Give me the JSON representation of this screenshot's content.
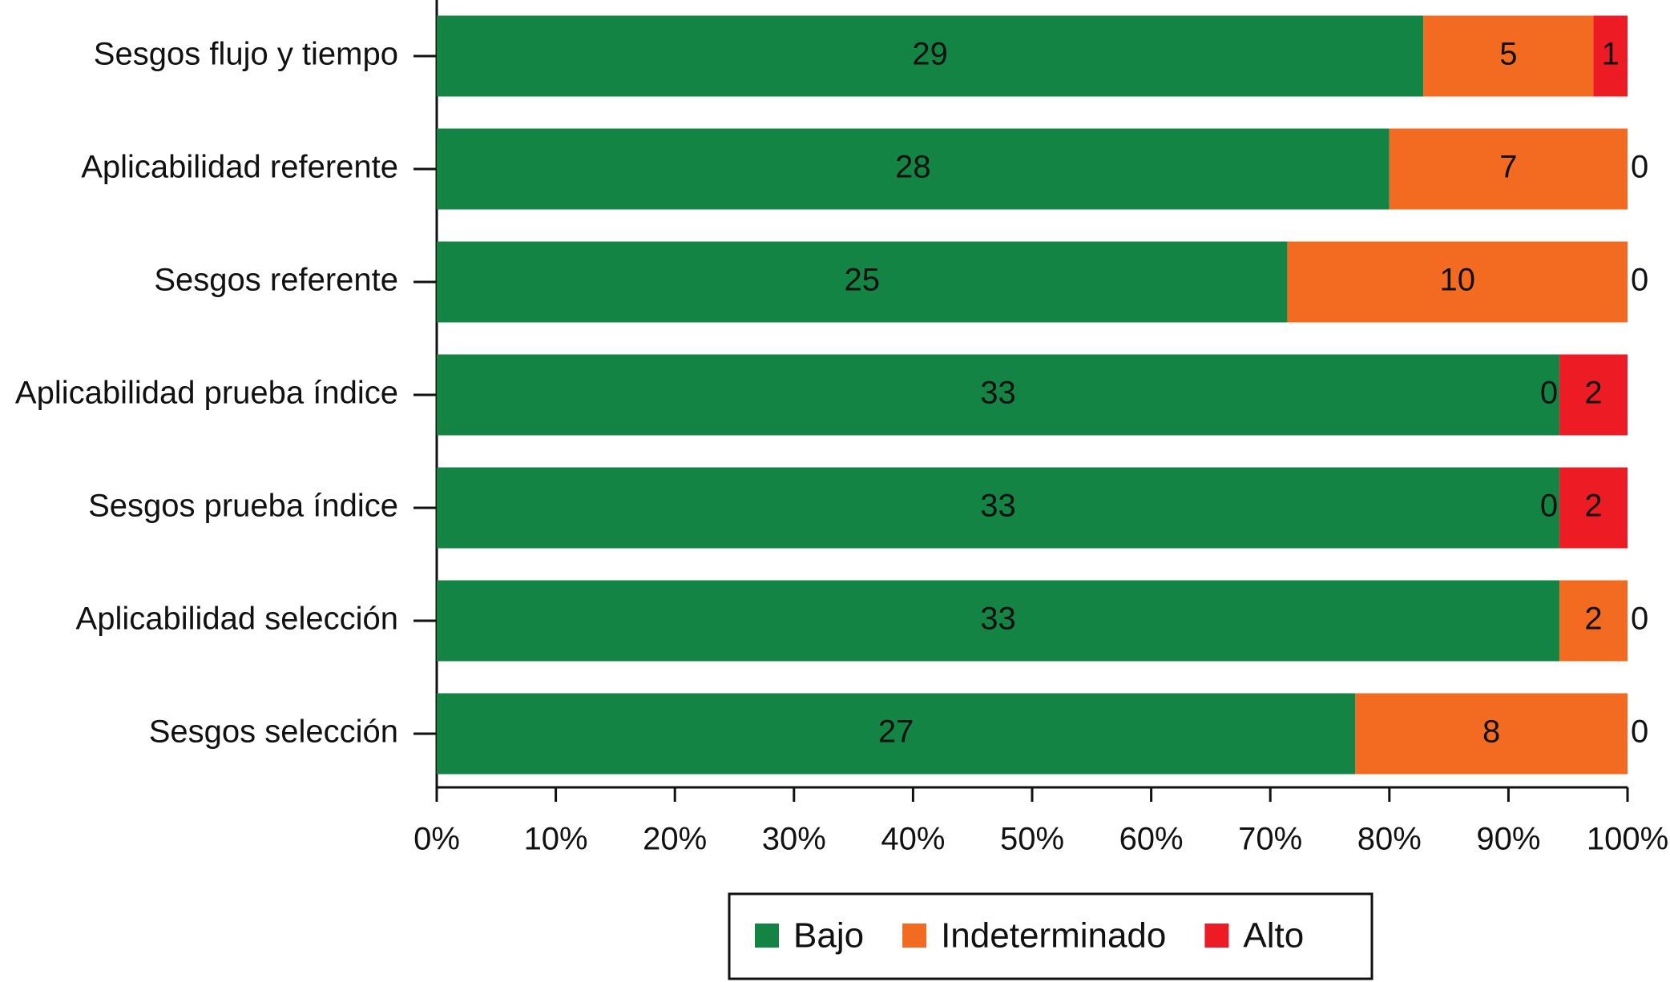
{
  "chart_data": {
    "type": "bar",
    "orientation": "horizontal",
    "stacked": "percent",
    "categories": [
      "Sesgos flujo y tiempo",
      "Aplicabilidad referente",
      "Sesgos referente",
      "Aplicabilidad prueba índice",
      "Sesgos prueba índice",
      "Aplicabilidad selección",
      "Sesgos selección"
    ],
    "series": [
      {
        "name": "Bajo",
        "color": "#138443",
        "values": [
          29,
          28,
          25,
          33,
          33,
          33,
          27
        ]
      },
      {
        "name": "Indeterminado",
        "color": "#f26b21",
        "values": [
          5,
          7,
          10,
          0,
          0,
          2,
          8
        ]
      },
      {
        "name": "Alto",
        "color": "#ed1c24",
        "values": [
          1,
          0,
          0,
          2,
          2,
          0,
          0
        ]
      }
    ],
    "xlim": [
      0,
      100
    ],
    "xticks": [
      {
        "value": 0,
        "label": "0%"
      },
      {
        "value": 10,
        "label": "10%"
      },
      {
        "value": 20,
        "label": "20%"
      },
      {
        "value": 30,
        "label": "30%"
      },
      {
        "value": 40,
        "label": "40%"
      },
      {
        "value": 50,
        "label": "50%"
      },
      {
        "value": 60,
        "label": "60%"
      },
      {
        "value": 70,
        "label": "70%"
      },
      {
        "value": 80,
        "label": "80%"
      },
      {
        "value": 90,
        "label": "90%"
      },
      {
        "value": 100,
        "label": "100%"
      }
    ],
    "legend": "bottom"
  }
}
